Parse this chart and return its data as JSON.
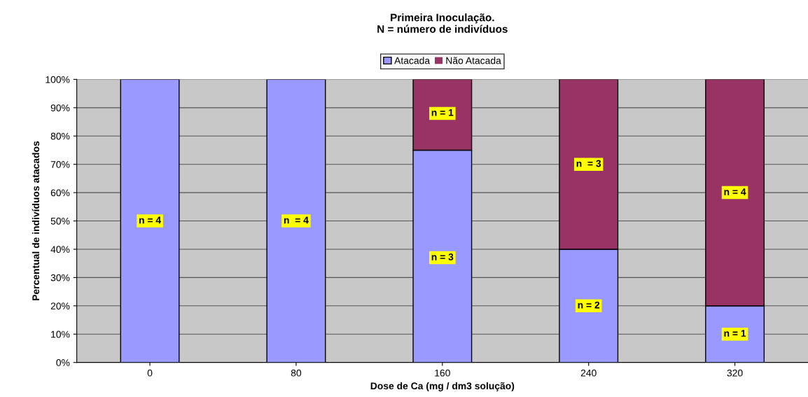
{
  "chart_data": {
    "type": "bar",
    "title": "Primeira Inoculação.\nN = número de indivíduos",
    "xlabel": "Dose de Ca (mg / dm3 solução)",
    "ylabel": "Percentual de indivíduos atacados",
    "categories": [
      "0",
      "80",
      "160",
      "240",
      "320"
    ],
    "series": [
      {
        "name": "Atacada",
        "color": "#9999ff",
        "values": [
          100,
          100,
          75,
          40,
          20
        ]
      },
      {
        "name": "Não Atacada",
        "color": "#993366",
        "values": [
          0,
          0,
          25,
          60,
          80
        ]
      }
    ],
    "stacked": true,
    "ylim": [
      0,
      100
    ],
    "yticks": [
      {
        "value": 0,
        "label": "0%"
      },
      {
        "value": 10,
        "label": "10%"
      },
      {
        "value": 20,
        "label": "20%"
      },
      {
        "value": 30,
        "label": "30%"
      },
      {
        "value": 40,
        "label": "40%"
      },
      {
        "value": 50,
        "label": "50%"
      },
      {
        "value": 60,
        "label": "60%"
      },
      {
        "value": 70,
        "label": "70%"
      },
      {
        "value": 80,
        "label": "80%"
      },
      {
        "value": 90,
        "label": "90%"
      },
      {
        "value": 100,
        "label": "100%"
      }
    ],
    "grid": "y",
    "legend": "top",
    "annotations": [
      {
        "text": "n = 4",
        "x": "0",
        "y": 50
      },
      {
        "text": "n  = 4",
        "x": "80",
        "y": 50
      },
      {
        "text": "n = 3",
        "x": "160",
        "y": 37
      },
      {
        "text": "n = 1",
        "x": "160",
        "y": 88
      },
      {
        "text": "n = 2",
        "x": "240",
        "y": 20
      },
      {
        "text": "n  = 3",
        "x": "240",
        "y": 70
      },
      {
        "text": "n = 1",
        "x": "320",
        "y": 10
      },
      {
        "text": "n = 4",
        "x": "320",
        "y": 60
      }
    ]
  }
}
